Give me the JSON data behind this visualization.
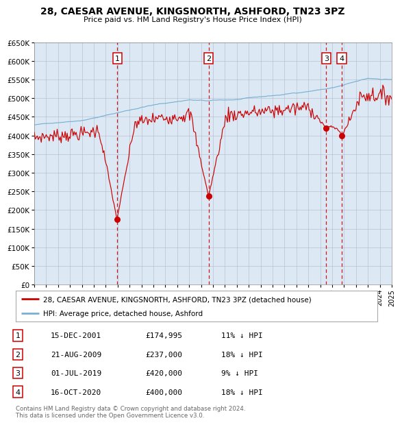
{
  "title": "28, CAESAR AVENUE, KINGSNORTH, ASHFORD, TN23 3PZ",
  "subtitle": "Price paid vs. HM Land Registry's House Price Index (HPI)",
  "background_color": "#ffffff",
  "plot_bg_color": "#dce9f5",
  "grid_color": "#b0b8c8",
  "hpi_line_color": "#7ab0d4",
  "price_line_color": "#cc0000",
  "dashed_line_color": "#cc0000",
  "marker_color": "#cc0000",
  "ylim": [
    0,
    650000
  ],
  "ytick_step": 50000,
  "purchases": [
    {
      "label": "1",
      "date": "15-DEC-2001",
      "price": 174995,
      "note": "11% ↓ HPI",
      "t": 2001.958
    },
    {
      "label": "2",
      "date": "21-AUG-2009",
      "price": 237000,
      "note": "18% ↓ HPI",
      "t": 2009.633
    },
    {
      "label": "3",
      "date": "01-JUL-2019",
      "price": 420000,
      "note": "9% ↓ HPI",
      "t": 2019.5
    },
    {
      "label": "4",
      "date": "16-OCT-2020",
      "price": 400000,
      "note": "18% ↓ HPI",
      "t": 2020.792
    }
  ],
  "legend_label_price": "28, CAESAR AVENUE, KINGSNORTH, ASHFORD, TN23 3PZ (detached house)",
  "legend_label_hpi": "HPI: Average price, detached house, Ashford",
  "footer": "Contains HM Land Registry data © Crown copyright and database right 2024.\nThis data is licensed under the Open Government Licence v3.0.",
  "xstart_year": 1995,
  "xend_year": 2025
}
